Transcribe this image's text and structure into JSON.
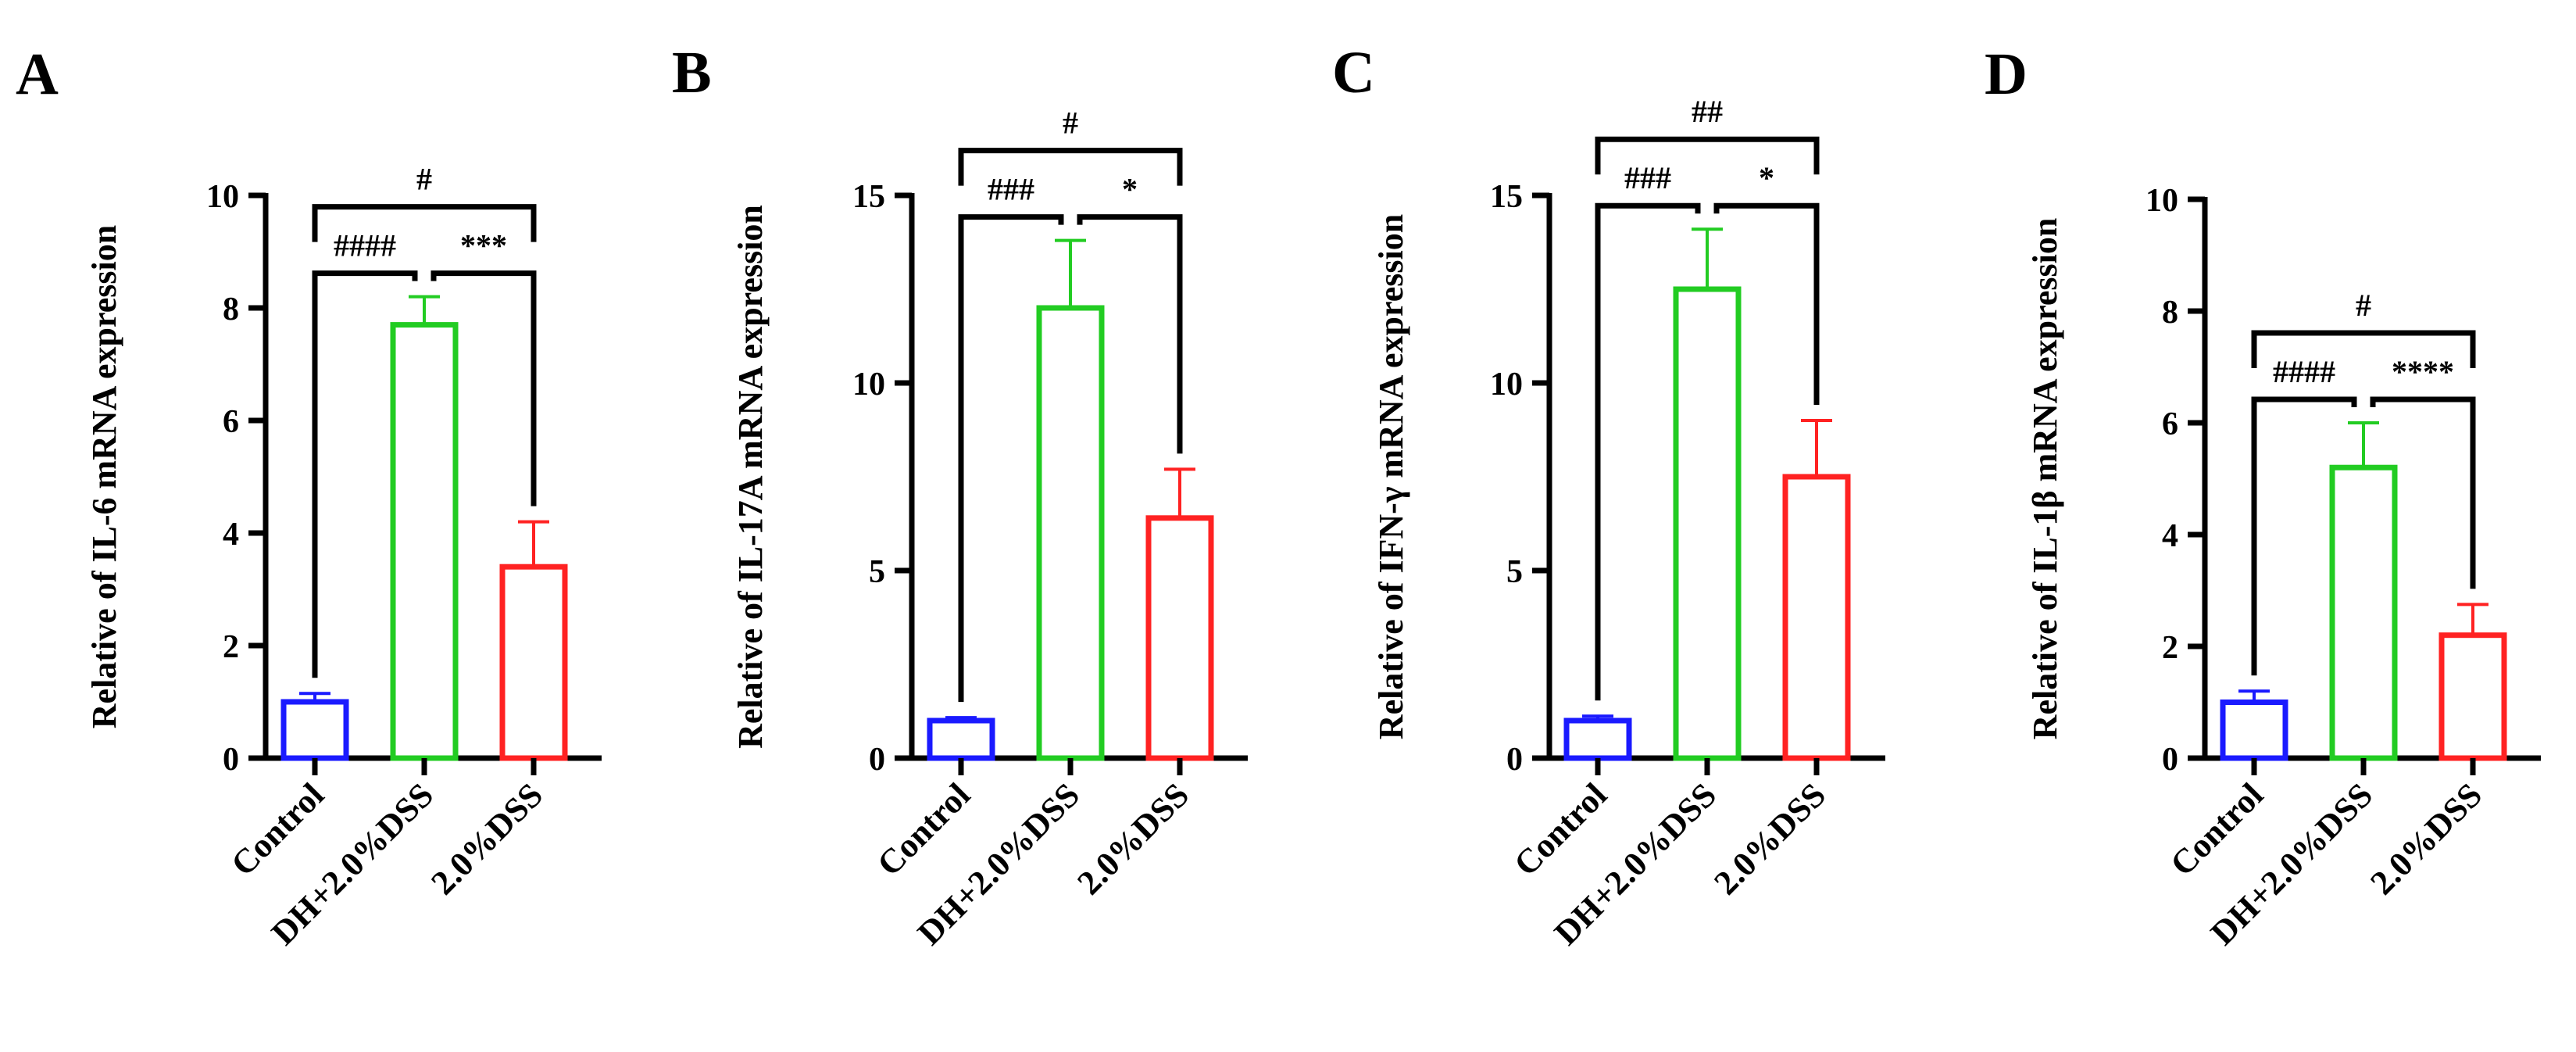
{
  "chart_data": [
    {
      "type": "bar",
      "panel": "A",
      "categories": [
        "Control",
        "DH+2.0%DSS",
        "2.0%DSS"
      ],
      "values": [
        1.0,
        7.7,
        3.4
      ],
      "errors": [
        0.15,
        0.5,
        0.8
      ],
      "colors": [
        "#1a1aff",
        "#22cc22",
        "#ff2222"
      ],
      "title": "",
      "xlabel": "",
      "ylabel": "Relative of IL-6 mRNA expression",
      "ylim": [
        0,
        10
      ],
      "yticks": [
        0,
        2,
        4,
        6,
        8,
        10
      ],
      "significance": [
        {
          "from": 0,
          "to": 1,
          "label": "####",
          "level": 1
        },
        {
          "from": 1,
          "to": 2,
          "label": "***",
          "level": 1
        },
        {
          "from": 0,
          "to": 2,
          "label": "#",
          "level": 2
        }
      ]
    },
    {
      "type": "bar",
      "panel": "B",
      "categories": [
        "Control",
        "DH+2.0%DSS",
        "2.0%DSS"
      ],
      "values": [
        1.0,
        12.0,
        6.4
      ],
      "errors": [
        0.08,
        1.8,
        1.3
      ],
      "colors": [
        "#1a1aff",
        "#22cc22",
        "#ff2222"
      ],
      "title": "",
      "xlabel": "",
      "ylabel": "Relative of IL-17A mRNA expression",
      "ylim": [
        0,
        15
      ],
      "yticks": [
        0,
        5,
        10,
        15
      ],
      "significance": [
        {
          "from": 0,
          "to": 1,
          "label": "###",
          "level": 1
        },
        {
          "from": 1,
          "to": 2,
          "label": "*",
          "level": 1
        },
        {
          "from": 0,
          "to": 2,
          "label": "#",
          "level": 2
        }
      ]
    },
    {
      "type": "bar",
      "panel": "C",
      "categories": [
        "Control",
        "DH+2.0%DSS",
        "2.0%DSS"
      ],
      "values": [
        1.0,
        12.5,
        7.5
      ],
      "errors": [
        0.12,
        1.6,
        1.5
      ],
      "colors": [
        "#1a1aff",
        "#22cc22",
        "#ff2222"
      ],
      "title": "",
      "xlabel": "",
      "ylabel": "Relative of IFN-γ mRNA expression",
      "ylim": [
        0,
        15
      ],
      "yticks": [
        0,
        5,
        10,
        15
      ],
      "significance": [
        {
          "from": 0,
          "to": 1,
          "label": "###",
          "level": 1
        },
        {
          "from": 1,
          "to": 2,
          "label": "*",
          "level": 1
        },
        {
          "from": 0,
          "to": 2,
          "label": "##",
          "level": 2
        }
      ]
    },
    {
      "type": "bar",
      "panel": "D",
      "categories": [
        "Control",
        "DH+2.0%DSS",
        "2.0%DSS"
      ],
      "values": [
        1.0,
        5.2,
        2.2
      ],
      "errors": [
        0.2,
        0.8,
        0.55
      ],
      "colors": [
        "#1a1aff",
        "#22cc22",
        "#ff2222"
      ],
      "title": "",
      "xlabel": "",
      "ylabel": "Relative of IL-1β mRNA expression",
      "ylim": [
        0,
        10
      ],
      "yticks": [
        0,
        2,
        4,
        6,
        8,
        10
      ],
      "significance": [
        {
          "from": 0,
          "to": 1,
          "label": "####",
          "level": 1
        },
        {
          "from": 1,
          "to": 2,
          "label": "****",
          "level": 1
        },
        {
          "from": 0,
          "to": 2,
          "label": "#",
          "level": 2
        }
      ]
    }
  ]
}
